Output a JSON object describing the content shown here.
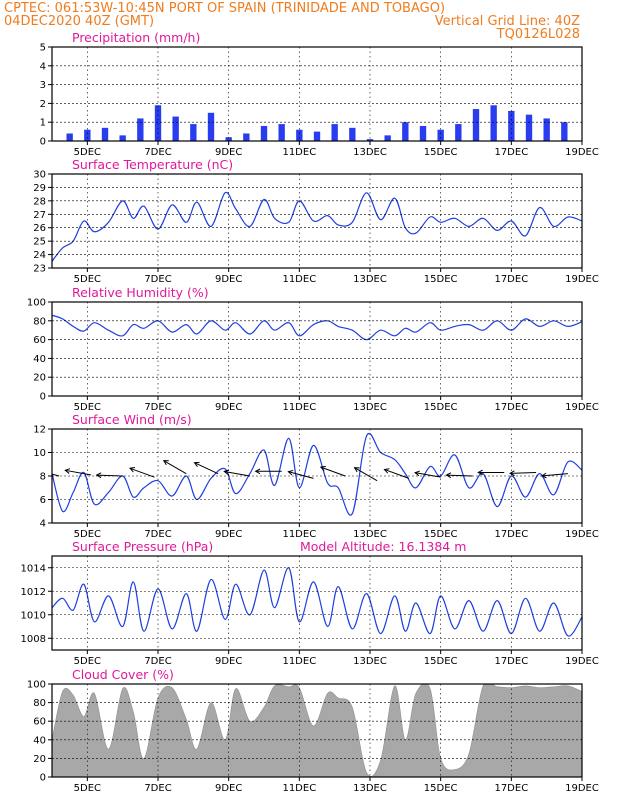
{
  "header": {
    "line1_left": "CPTEC:  061:53W-10:45N  PORT OF SPAIN (TRINIDADE AND TOBAGO)",
    "line2_left": "04DEC2020 40Z (GMT)",
    "line2_right": "Vertical Grid Line: 40Z",
    "line3_right": "TQ0126L028"
  },
  "colors": {
    "header": "#f07c1e",
    "panel_title": "#e0199a",
    "series": "#1f3fe0",
    "precip_bar": "#2a3cf0",
    "cloud_fill": "#a8a8a8",
    "wind_arrow": "#000000"
  },
  "x_ticks": [
    "5DEC",
    "7DEC",
    "9DEC",
    "11DEC",
    "13DEC",
    "15DEC",
    "17DEC",
    "19DEC"
  ],
  "chart_data": [
    {
      "type": "bar",
      "title": "Precipitation (mm/h)",
      "x_range": [
        "04DEC2020",
        "19DEC2020"
      ],
      "ylim": [
        0,
        5
      ],
      "y_ticks": [
        0,
        1,
        2,
        3,
        4,
        5
      ],
      "days": [
        4.5,
        5.0,
        5.5,
        6.0,
        6.5,
        7.0,
        7.5,
        8.0,
        8.5,
        9.0,
        9.5,
        10.0,
        10.5,
        11.0,
        11.5,
        12.0,
        12.5,
        13.0,
        13.5,
        14.0,
        14.5,
        15.0,
        15.5,
        16.0,
        16.5,
        17.0,
        17.5,
        18.0,
        18.5
      ],
      "values": [
        0.4,
        0.6,
        0.7,
        0.3,
        1.2,
        1.9,
        1.3,
        0.9,
        1.5,
        0.2,
        0.4,
        0.8,
        0.9,
        0.6,
        0.5,
        0.9,
        0.7,
        0.1,
        0.3,
        1.0,
        0.8,
        0.6,
        0.9,
        1.7,
        1.9,
        1.6,
        1.4,
        1.2,
        1.0
      ]
    },
    {
      "type": "line",
      "title": "Surface Temperature (nC)",
      "ylim": [
        23,
        30
      ],
      "y_ticks": [
        23,
        24,
        25,
        26,
        27,
        28,
        29,
        30
      ],
      "days": [
        4.0,
        4.3,
        4.6,
        4.9,
        5.2,
        5.6,
        6.0,
        6.3,
        6.6,
        7.0,
        7.4,
        7.8,
        8.1,
        8.5,
        8.9,
        9.2,
        9.6,
        10.0,
        10.3,
        10.7,
        11.0,
        11.4,
        11.8,
        12.1,
        12.5,
        12.9,
        13.3,
        13.7,
        14.0,
        14.3,
        14.7,
        15.0,
        15.4,
        15.8,
        16.2,
        16.6,
        17.0,
        17.4,
        17.8,
        18.2,
        18.6,
        19.0
      ],
      "values": [
        23.5,
        24.5,
        25.0,
        26.5,
        25.7,
        26.4,
        28.0,
        26.7,
        27.6,
        25.9,
        27.7,
        26.4,
        27.9,
        26.1,
        28.6,
        27.4,
        26.1,
        28.1,
        26.7,
        26.4,
        28.0,
        26.5,
        26.9,
        26.2,
        26.4,
        28.6,
        26.6,
        28.2,
        26.0,
        25.6,
        26.8,
        26.4,
        26.7,
        26.1,
        26.7,
        25.8,
        26.5,
        25.4,
        27.5,
        26.1,
        26.8,
        26.5
      ]
    },
    {
      "type": "line",
      "title": "Relative Humidity (%)",
      "ylim": [
        0,
        100
      ],
      "y_ticks": [
        0,
        20,
        40,
        60,
        80,
        100
      ],
      "days": [
        4.0,
        4.3,
        4.6,
        4.9,
        5.2,
        5.6,
        6.0,
        6.3,
        6.6,
        7.0,
        7.4,
        7.8,
        8.1,
        8.5,
        8.9,
        9.2,
        9.6,
        10.0,
        10.3,
        10.7,
        11.0,
        11.4,
        11.8,
        12.1,
        12.5,
        12.9,
        13.3,
        13.7,
        14.0,
        14.3,
        14.7,
        15.0,
        15.4,
        15.8,
        16.2,
        16.6,
        17.0,
        17.4,
        17.8,
        18.2,
        18.6,
        19.0
      ],
      "values": [
        86,
        82,
        74,
        69,
        78,
        70,
        64,
        76,
        72,
        80,
        68,
        76,
        66,
        80,
        70,
        78,
        66,
        80,
        70,
        78,
        64,
        76,
        80,
        74,
        70,
        60,
        70,
        64,
        72,
        68,
        78,
        70,
        74,
        76,
        70,
        80,
        70,
        82,
        74,
        80,
        74,
        79
      ]
    },
    {
      "type": "line",
      "title": "Surface Wind (m/s)",
      "ylim": [
        4,
        12
      ],
      "y_ticks": [
        4,
        6,
        8,
        10,
        12
      ],
      "days": [
        4.0,
        4.3,
        4.6,
        4.9,
        5.2,
        5.6,
        6.0,
        6.3,
        6.6,
        7.0,
        7.4,
        7.8,
        8.1,
        8.5,
        8.9,
        9.2,
        9.6,
        10.0,
        10.3,
        10.7,
        11.0,
        11.4,
        11.8,
        12.1,
        12.5,
        12.9,
        13.3,
        13.7,
        14.0,
        14.3,
        14.7,
        15.0,
        15.4,
        15.8,
        16.2,
        16.6,
        17.0,
        17.4,
        17.8,
        18.2,
        18.6,
        19.0
      ],
      "values": [
        8.2,
        5.0,
        6.6,
        8.3,
        5.6,
        6.6,
        8.0,
        6.2,
        7.0,
        7.6,
        6.3,
        8.0,
        6.0,
        7.8,
        8.6,
        6.5,
        8.2,
        10.2,
        7.2,
        11.2,
        7.0,
        10.6,
        7.4,
        7.0,
        4.8,
        11.4,
        10.0,
        9.4,
        8.2,
        7.0,
        8.8,
        8.0,
        9.8,
        7.0,
        8.2,
        5.4,
        8.0,
        6.2,
        8.2,
        6.4,
        9.2,
        8.5
      ],
      "arrows": {
        "days": [
          4.2,
          5.1,
          6.0,
          6.9,
          7.8,
          8.7,
          9.6,
          10.5,
          11.4,
          12.3,
          13.2,
          14.1,
          15.0,
          15.9,
          16.8,
          17.7,
          18.6
        ],
        "speeds": [
          8.0,
          8.1,
          8.0,
          7.9,
          8.2,
          8.2,
          8.0,
          8.4,
          7.8,
          8.0,
          7.6,
          7.8,
          7.9,
          8.0,
          8.3,
          8.3,
          8.2
        ],
        "dir_deg": [
          75,
          80,
          88,
          70,
          60,
          65,
          80,
          90,
          75,
          70,
          60,
          70,
          80,
          88,
          90,
          92,
          95
        ]
      }
    },
    {
      "type": "line",
      "title": "Surface Pressure (hPa)",
      "annotation": "Model Altitude: 16.1384 m",
      "ylim": [
        1007,
        1015
      ],
      "y_ticks": [
        1008,
        1010,
        1012,
        1014
      ],
      "days": [
        4.0,
        4.3,
        4.6,
        4.9,
        5.2,
        5.6,
        6.0,
        6.3,
        6.6,
        7.0,
        7.4,
        7.8,
        8.1,
        8.5,
        8.9,
        9.2,
        9.6,
        10.0,
        10.3,
        10.7,
        11.0,
        11.4,
        11.8,
        12.1,
        12.5,
        12.9,
        13.3,
        13.7,
        14.0,
        14.3,
        14.7,
        15.0,
        15.4,
        15.8,
        16.2,
        16.6,
        17.0,
        17.4,
        17.8,
        18.2,
        18.6,
        19.0
      ],
      "values": [
        1010.6,
        1011.4,
        1010.4,
        1012.6,
        1009.4,
        1011.6,
        1009.0,
        1012.8,
        1008.6,
        1012.2,
        1008.8,
        1011.8,
        1008.6,
        1013.0,
        1009.6,
        1012.6,
        1010.0,
        1013.8,
        1010.6,
        1014.0,
        1009.4,
        1012.8,
        1009.0,
        1012.4,
        1008.8,
        1011.8,
        1008.4,
        1011.6,
        1008.6,
        1011.0,
        1008.4,
        1011.6,
        1008.8,
        1011.2,
        1008.6,
        1011.2,
        1008.4,
        1011.4,
        1008.6,
        1011.0,
        1008.2,
        1009.8
      ]
    },
    {
      "type": "area",
      "title": "Cloud Cover (%)",
      "ylim": [
        0,
        100
      ],
      "y_ticks": [
        0,
        20,
        40,
        60,
        80,
        100
      ],
      "days": [
        4.0,
        4.3,
        4.6,
        4.9,
        5.2,
        5.6,
        6.0,
        6.3,
        6.6,
        7.0,
        7.4,
        7.8,
        8.1,
        8.5,
        8.9,
        9.2,
        9.6,
        10.0,
        10.3,
        10.7,
        11.0,
        11.4,
        11.8,
        12.1,
        12.5,
        12.9,
        13.3,
        13.7,
        14.0,
        14.3,
        14.7,
        15.0,
        15.4,
        15.8,
        16.2,
        16.6,
        17.0,
        17.4,
        17.8,
        18.2,
        18.6,
        19.0
      ],
      "values": [
        40,
        92,
        88,
        65,
        90,
        30,
        95,
        70,
        20,
        85,
        96,
        62,
        30,
        80,
        40,
        95,
        60,
        75,
        98,
        97,
        96,
        55,
        90,
        85,
        75,
        5,
        18,
        98,
        40,
        90,
        95,
        20,
        8,
        25,
        98,
        97,
        96,
        98,
        96,
        97,
        98,
        92
      ]
    }
  ]
}
